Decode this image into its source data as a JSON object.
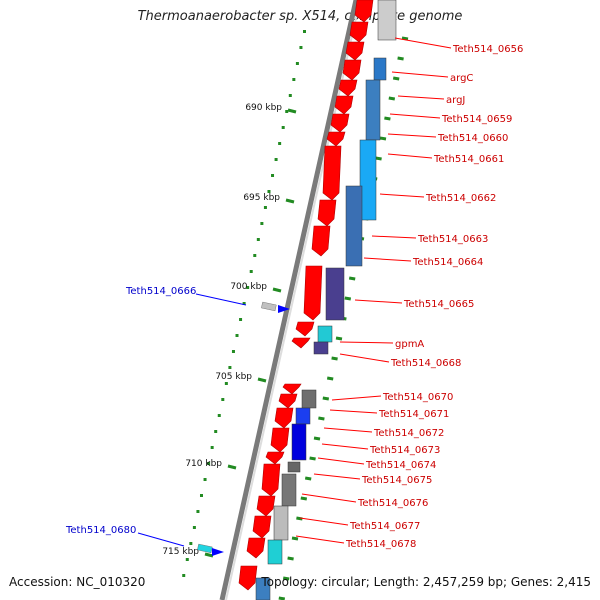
{
  "title": "Thermoanaerobacter sp. X514, complete genome",
  "footer": {
    "accession": "Accession: NC_010320",
    "topology": "Topology: circular; Length: 2,457,259 bp; Genes: 2,415"
  },
  "kbp_labels": [
    "690 kbp",
    "695 kbp",
    "700 kbp",
    "705 kbp",
    "710 kbp",
    "715 kbp"
  ],
  "genes_right": [
    {
      "name": "Teth514_0656"
    },
    {
      "name": "argC"
    },
    {
      "name": "argJ"
    },
    {
      "name": "Teth514_0659"
    },
    {
      "name": "Teth514_0660"
    },
    {
      "name": "Teth514_0661"
    },
    {
      "name": "Teth514_0662"
    },
    {
      "name": "Teth514_0663"
    },
    {
      "name": "Teth514_0664"
    },
    {
      "name": "Teth514_0665"
    },
    {
      "name": "gpmA"
    },
    {
      "name": "Teth514_0668"
    },
    {
      "name": "Teth514_0670"
    },
    {
      "name": "Teth514_0671"
    },
    {
      "name": "Teth514_0672"
    },
    {
      "name": "Teth514_0673"
    },
    {
      "name": "Teth514_0674"
    },
    {
      "name": "Teth514_0675"
    },
    {
      "name": "Teth514_0676"
    },
    {
      "name": "Teth514_0677"
    },
    {
      "name": "Teth514_0678"
    }
  ],
  "genes_left": [
    {
      "name": "Teth514_0666"
    },
    {
      "name": "Teth514_0680"
    }
  ],
  "colors": {
    "gene_red": "#ff0000",
    "label_red": "#cc0000",
    "label_blue": "#0000cc",
    "tick_green": "#228b22",
    "backbone": "#808080"
  }
}
